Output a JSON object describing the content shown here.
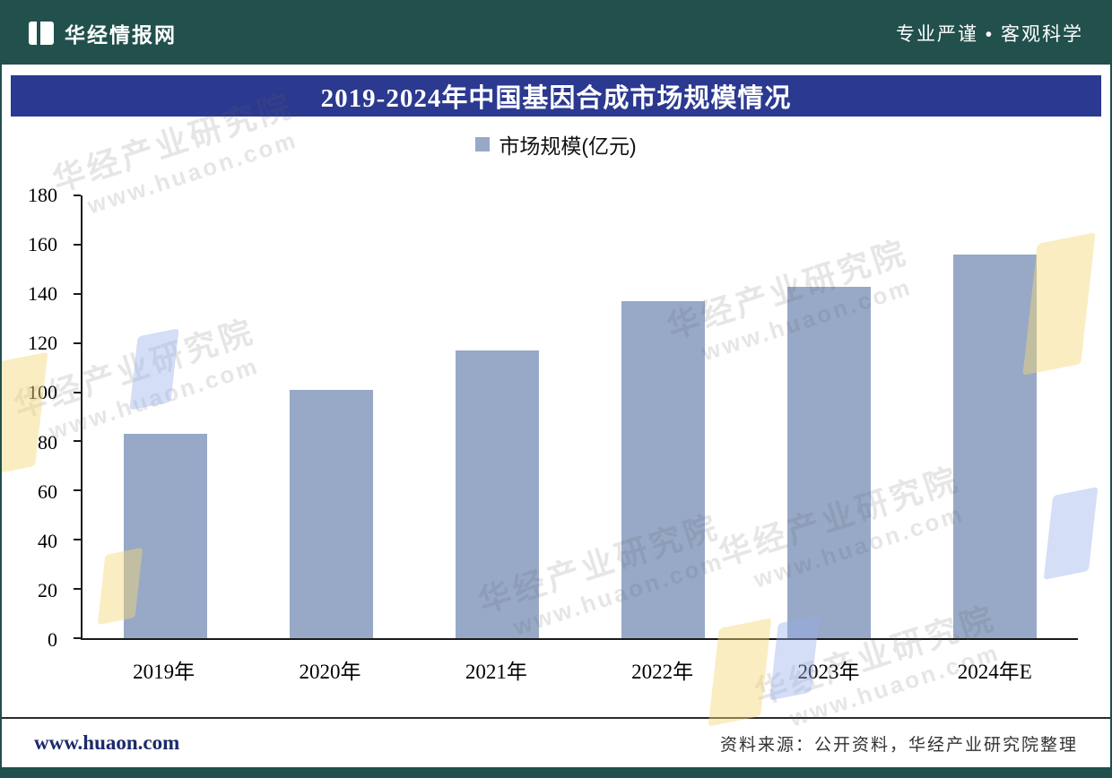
{
  "header": {
    "brand": "华经情报网",
    "slogan": "专业严谨 • 客观科学"
  },
  "title": "2019-2024年中国基因合成市场规模情况",
  "legend": {
    "label": "市场规模(亿元)"
  },
  "chart_data": {
    "type": "bar",
    "categories": [
      "2019年",
      "2020年",
      "2021年",
      "2022年",
      "2023年",
      "2024年E"
    ],
    "values": [
      83,
      101,
      117,
      137,
      143,
      156
    ],
    "title": "2019-2024年中国基因合成市场规模情况",
    "xlabel": "",
    "ylabel": "市场规模(亿元)",
    "ylim": [
      0,
      180
    ],
    "ytick_step": 20,
    "grid": false,
    "legend_position": "top",
    "bar_color": "#97a9c7"
  },
  "footer": {
    "website": "www.huaon.com",
    "source": "资料来源：公开资料，华经产业研究院整理"
  },
  "watermark": {
    "line1": "华经产业研究院",
    "line2": "www.huaon.com"
  },
  "colors": {
    "header_bg": "#21504d",
    "title_banner_bg": "#2b3990",
    "bar": "#97a9c7"
  }
}
